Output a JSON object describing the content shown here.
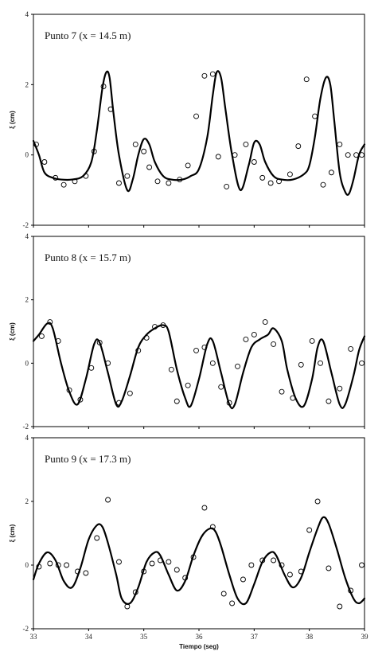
{
  "chart_data": [
    {
      "type": "line",
      "title": "Punto 7 (x = 14.5 m)",
      "ylabel": "ξ (cm)",
      "xlabel": "",
      "xlim": [
        33,
        39
      ],
      "ylim": [
        -2,
        4
      ],
      "yticks": [
        "4",
        "2",
        "0",
        "-2"
      ],
      "grid": false,
      "series": [
        {
          "style": "line",
          "x": [
            33.0,
            33.1,
            33.2,
            33.35,
            33.5,
            33.7,
            33.9,
            34.05,
            34.15,
            34.25,
            34.32,
            34.38,
            34.45,
            34.55,
            34.7,
            34.8,
            34.9,
            35.0,
            35.1,
            35.2,
            35.35,
            35.5,
            35.7,
            35.85,
            36.0,
            36.15,
            36.25,
            36.32,
            36.4,
            36.48,
            36.6,
            36.75,
            36.9,
            37.0,
            37.1,
            37.2,
            37.35,
            37.5,
            37.7,
            37.9,
            38.0,
            38.1,
            38.2,
            38.3,
            38.38,
            38.45,
            38.55,
            38.65,
            38.72,
            38.8,
            38.9,
            39.0
          ],
          "y": [
            0.4,
            0.0,
            -0.5,
            -0.65,
            -0.7,
            -0.7,
            -0.6,
            -0.2,
            0.7,
            1.9,
            2.35,
            2.2,
            1.2,
            0.0,
            -1.0,
            -0.7,
            0.0,
            0.45,
            0.3,
            -0.2,
            -0.6,
            -0.7,
            -0.7,
            -0.6,
            -0.4,
            0.5,
            1.7,
            2.35,
            2.2,
            1.3,
            0.0,
            -1.0,
            -0.3,
            0.35,
            0.3,
            -0.2,
            -0.6,
            -0.7,
            -0.7,
            -0.55,
            -0.3,
            0.5,
            1.6,
            2.2,
            2.0,
            1.0,
            -0.5,
            -1.05,
            -1.1,
            -0.7,
            0.0,
            0.3
          ]
        },
        {
          "style": "markers",
          "x": [
            33.05,
            33.2,
            33.4,
            33.55,
            33.75,
            33.95,
            34.1,
            34.27,
            34.4,
            34.55,
            34.7,
            34.85,
            35.0,
            35.1,
            35.25,
            35.45,
            35.65,
            35.8,
            35.95,
            36.1,
            36.25,
            36.35,
            36.5,
            36.65,
            36.85,
            37.0,
            37.15,
            37.3,
            37.45,
            37.65,
            37.8,
            37.95,
            38.1,
            38.25,
            38.4,
            38.55,
            38.7,
            38.85,
            38.95
          ],
          "y": [
            0.3,
            -0.2,
            -0.65,
            -0.85,
            -0.75,
            -0.6,
            0.1,
            1.95,
            1.3,
            -0.8,
            -0.6,
            0.3,
            0.1,
            -0.35,
            -0.75,
            -0.8,
            -0.7,
            -0.3,
            1.1,
            2.25,
            2.3,
            -0.05,
            -0.9,
            0.0,
            0.3,
            -0.2,
            -0.65,
            -0.8,
            -0.75,
            -0.55,
            0.25,
            2.15,
            1.1,
            -0.85,
            -0.5,
            0.3,
            0.0,
            0.0,
            0.0
          ]
        }
      ]
    },
    {
      "type": "line",
      "title": "Punto 8 (x = 15.7 m)",
      "ylabel": "ξ (cm)",
      "xlabel": "",
      "xlim": [
        33,
        39
      ],
      "ylim": [
        -2,
        4
      ],
      "yticks": [
        "4",
        "2",
        "0",
        "-2"
      ],
      "grid": false,
      "series": [
        {
          "style": "line",
          "x": [
            33.0,
            33.1,
            33.25,
            33.35,
            33.5,
            33.65,
            33.8,
            33.95,
            34.1,
            34.2,
            34.35,
            34.5,
            34.6,
            34.75,
            34.9,
            35.05,
            35.2,
            35.35,
            35.45,
            35.6,
            35.75,
            35.85,
            36.0,
            36.15,
            36.25,
            36.4,
            36.55,
            36.65,
            36.8,
            36.95,
            37.1,
            37.25,
            37.35,
            37.5,
            37.6,
            37.75,
            37.9,
            38.05,
            38.15,
            38.25,
            38.4,
            38.55,
            38.65,
            38.8,
            38.9,
            39.0
          ],
          "y": [
            0.7,
            0.9,
            1.25,
            1.1,
            0.0,
            -0.9,
            -1.3,
            -0.5,
            0.6,
            0.65,
            -0.3,
            -1.3,
            -1.2,
            -0.4,
            0.5,
            0.9,
            1.1,
            1.2,
            1.0,
            -0.2,
            -1.1,
            -1.35,
            -0.5,
            0.6,
            0.7,
            -0.3,
            -1.3,
            -1.3,
            -0.3,
            0.5,
            0.75,
            0.9,
            1.1,
            0.7,
            -0.2,
            -1.1,
            -1.35,
            -0.5,
            0.5,
            0.7,
            -0.3,
            -1.3,
            -1.3,
            -0.4,
            0.4,
            0.85
          ]
        },
        {
          "style": "markers",
          "x": [
            33.15,
            33.3,
            33.45,
            33.65,
            33.85,
            34.05,
            34.2,
            34.35,
            34.55,
            34.75,
            34.9,
            35.05,
            35.2,
            35.35,
            35.5,
            35.6,
            35.8,
            35.95,
            36.1,
            36.25,
            36.4,
            36.55,
            36.7,
            36.85,
            37.0,
            37.2,
            37.35,
            37.5,
            37.7,
            37.85,
            38.05,
            38.2,
            38.35,
            38.55,
            38.75,
            38.95
          ],
          "y": [
            0.85,
            1.3,
            0.7,
            -0.85,
            -1.15,
            -0.15,
            0.65,
            0.0,
            -1.25,
            -0.95,
            0.4,
            0.8,
            1.15,
            1.2,
            -0.2,
            -1.2,
            -0.7,
            0.4,
            0.5,
            0.0,
            -0.75,
            -1.25,
            -0.1,
            0.75,
            0.9,
            1.3,
            0.6,
            -0.9,
            -1.1,
            -0.05,
            0.7,
            0.0,
            -1.2,
            -0.8,
            0.45,
            0.0
          ]
        }
      ]
    },
    {
      "type": "line",
      "title": "Punto 9 (x = 17.3 m)",
      "ylabel": "ξ (cm)",
      "xlabel": "Tiempo (seg)",
      "xlim": [
        33,
        39
      ],
      "ylim": [
        -2,
        4
      ],
      "yticks": [
        "4",
        "2",
        "0",
        "-2"
      ],
      "xticks": [
        "33",
        "34",
        "35",
        "36",
        "37",
        "38",
        "39"
      ],
      "grid": false,
      "series": [
        {
          "style": "line",
          "x": [
            33.0,
            33.1,
            33.25,
            33.4,
            33.55,
            33.7,
            33.85,
            34.0,
            34.15,
            34.25,
            34.35,
            34.5,
            34.6,
            34.75,
            34.9,
            35.05,
            35.2,
            35.3,
            35.45,
            35.6,
            35.75,
            35.9,
            36.05,
            36.2,
            36.3,
            36.4,
            36.55,
            36.7,
            36.85,
            37.0,
            37.15,
            37.3,
            37.4,
            37.55,
            37.7,
            37.85,
            38.0,
            38.15,
            38.25,
            38.35,
            38.5,
            38.65,
            38.8,
            38.9,
            39.0
          ],
          "y": [
            -0.45,
            0.05,
            0.4,
            0.15,
            -0.5,
            -0.7,
            -0.1,
            0.8,
            1.25,
            1.2,
            0.7,
            -0.3,
            -1.05,
            -1.2,
            -0.7,
            0.1,
            0.4,
            0.3,
            -0.3,
            -0.8,
            -0.5,
            0.3,
            0.9,
            1.15,
            1.05,
            0.6,
            -0.3,
            -1.05,
            -1.2,
            -0.6,
            0.1,
            0.4,
            0.3,
            -0.3,
            -0.7,
            -0.4,
            0.4,
            1.15,
            1.5,
            1.3,
            0.5,
            -0.4,
            -1.05,
            -1.2,
            -1.05
          ]
        },
        {
          "style": "markers",
          "x": [
            33.1,
            33.3,
            33.45,
            33.6,
            33.8,
            33.95,
            34.15,
            34.35,
            34.55,
            34.7,
            34.85,
            35.0,
            35.15,
            35.3,
            35.45,
            35.6,
            35.75,
            35.9,
            36.1,
            36.25,
            36.45,
            36.6,
            36.8,
            36.95,
            37.15,
            37.35,
            37.5,
            37.65,
            37.85,
            38.0,
            38.15,
            38.35,
            38.55,
            38.75,
            38.95
          ],
          "y": [
            -0.05,
            0.05,
            0.0,
            0.0,
            -0.2,
            -0.25,
            0.85,
            2.05,
            0.1,
            -1.3,
            -0.85,
            -0.2,
            0.05,
            0.15,
            0.1,
            -0.15,
            -0.4,
            0.25,
            1.8,
            1.2,
            -0.9,
            -1.2,
            -0.45,
            0.0,
            0.15,
            0.15,
            0.0,
            -0.3,
            -0.2,
            1.1,
            2.0,
            -0.1,
            -1.3,
            -0.8,
            0.0
          ]
        }
      ]
    }
  ]
}
